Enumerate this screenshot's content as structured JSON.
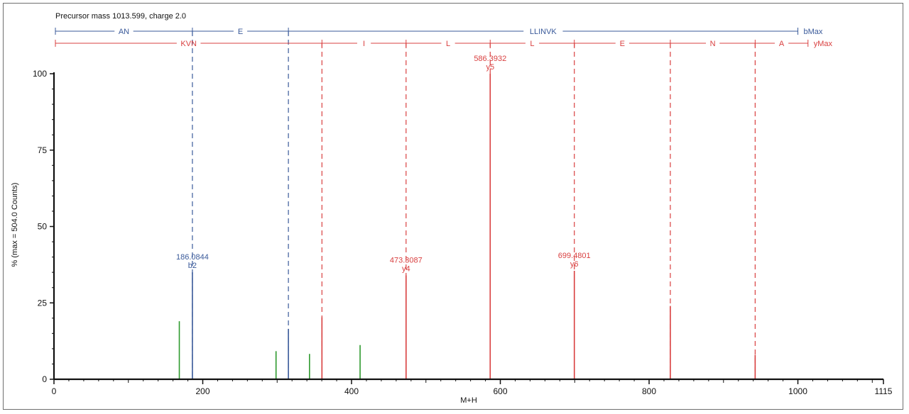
{
  "chart_data": {
    "type": "bar",
    "title": "Precursor mass 1013.599, charge 2.0",
    "xlabel": "M+H",
    "ylabel": "% (max = 504.0 Counts)",
    "xlim": [
      0,
      1115
    ],
    "ylim": [
      0,
      100
    ],
    "x_ticks": [
      0,
      200,
      400,
      600,
      800,
      1000,
      1115
    ],
    "y_ticks": [
      0,
      25,
      50,
      75,
      100
    ],
    "colors": {
      "b": "#3a5a9a",
      "y": "#d94040",
      "other": "#2e9a2e",
      "axis": "#111111"
    },
    "b_ladder": {
      "end_label": "bMax",
      "segments": [
        {
          "label": "AN",
          "from": 0,
          "to": 186.0844
        },
        {
          "label": "E",
          "from": 186.0844,
          "to": 315.127
        },
        {
          "label": "LLINVK",
          "from": 315.127,
          "to": 1000
        }
      ]
    },
    "y_ladder": {
      "end_label": "yMax",
      "segments": [
        {
          "label": "KVN",
          "from": 0,
          "to": 360.2245
        },
        {
          "label": "I",
          "from": 360.2245,
          "to": 473.3087
        },
        {
          "label": "L",
          "from": 473.3087,
          "to": 586.3932
        },
        {
          "label": "L",
          "from": 586.3932,
          "to": 699.4801
        },
        {
          "label": "E",
          "from": 699.4801,
          "to": 828.5227
        },
        {
          "label": "N",
          "from": 828.5227,
          "to": 942.5656
        },
        {
          "label": "A",
          "from": 942.5656,
          "to": 1013.599
        }
      ]
    },
    "b_dashed": [
      186.0844,
      315.127
    ],
    "y_dashed": [
      360.2245,
      473.3087,
      586.3932,
      699.4801,
      828.5227,
      942.5656
    ],
    "peaks": [
      {
        "mz": 168.5,
        "intensity": 19,
        "type": "other"
      },
      {
        "mz": 186.0844,
        "intensity": 35,
        "type": "b",
        "mass_label": "186.0844",
        "ion_label": "b2"
      },
      {
        "mz": 298.5,
        "intensity": 9.2,
        "type": "other"
      },
      {
        "mz": 315.127,
        "intensity": 16.5,
        "type": "b"
      },
      {
        "mz": 343.5,
        "intensity": 8.3,
        "type": "other"
      },
      {
        "mz": 360.2245,
        "intensity": 20.3,
        "type": "y"
      },
      {
        "mz": 411.5,
        "intensity": 11.2,
        "type": "other"
      },
      {
        "mz": 473.3087,
        "intensity": 34,
        "type": "y",
        "mass_label": "473.3087",
        "ion_label": "y4"
      },
      {
        "mz": 586.3932,
        "intensity": 100,
        "type": "y",
        "mass_label": "586.3932",
        "ion_label": "y5"
      },
      {
        "mz": 699.4801,
        "intensity": 35.5,
        "type": "y",
        "mass_label": "699.4801",
        "ion_label": "y6"
      },
      {
        "mz": 828.5227,
        "intensity": 24,
        "type": "y"
      },
      {
        "mz": 942.5656,
        "intensity": 8,
        "type": "y"
      }
    ]
  }
}
